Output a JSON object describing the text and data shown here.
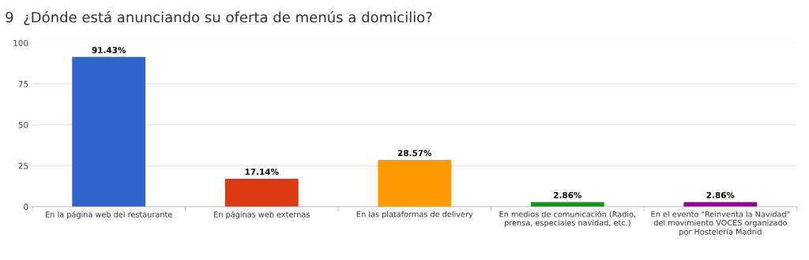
{
  "chart_data": {
    "type": "bar",
    "title": "9  ¿Dónde está anunciando su oferta de menús a domicilio?",
    "categories": [
      "En la página web del restaurante",
      "En páginas web externas",
      "En las plataformas de delivery",
      "En medios de comunicación (Radio,\nprensa, especiales navidad, etc.)",
      "En el evento \"Reinventa la Navidad\"\ndel movimiento VOCES organizado\npor Hostelería Madrid"
    ],
    "values": [
      91.43,
      17.14,
      28.57,
      2.86,
      2.86
    ],
    "colors": [
      "#3366cc",
      "#dc3912",
      "#ff9900",
      "#109618",
      "#990099"
    ],
    "value_labels": [
      "91.43%",
      "17.14%",
      "28.57%",
      "2.86%",
      "2.86%"
    ],
    "ylim": [
      0,
      100
    ],
    "yticks": [
      0,
      25,
      50,
      75,
      100
    ],
    "grid": "y",
    "legend": false
  }
}
